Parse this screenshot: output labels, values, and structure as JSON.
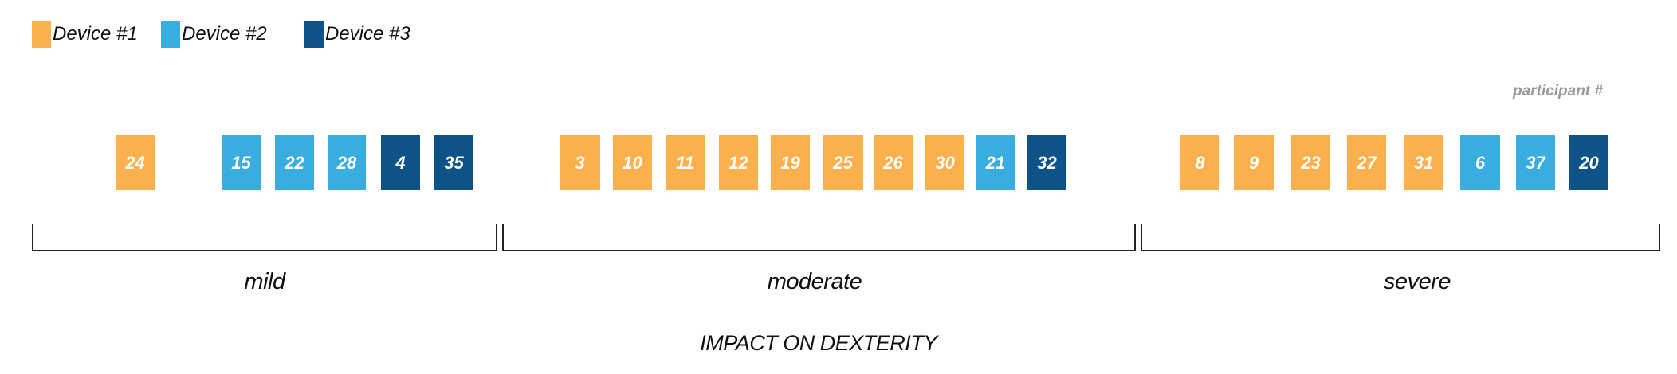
{
  "legend": [
    {
      "label": "Device #1",
      "color": "#F9B04D"
    },
    {
      "label": "Device #2",
      "color": "#39ACE0"
    },
    {
      "label": "Device #3",
      "color": "#0E5387"
    }
  ],
  "participant_caption": "participant #",
  "groups": [
    {
      "label": "mild",
      "participants": [
        {
          "id": "24",
          "device": 1
        },
        {
          "id": "15",
          "device": 2
        },
        {
          "id": "22",
          "device": 2
        },
        {
          "id": "28",
          "device": 2
        },
        {
          "id": "4",
          "device": 3
        },
        {
          "id": "35",
          "device": 3
        }
      ]
    },
    {
      "label": "moderate",
      "participants": [
        {
          "id": "3",
          "device": 1
        },
        {
          "id": "10",
          "device": 1
        },
        {
          "id": "11",
          "device": 1
        },
        {
          "id": "12",
          "device": 1
        },
        {
          "id": "19",
          "device": 1
        },
        {
          "id": "25",
          "device": 1
        },
        {
          "id": "26",
          "device": 1
        },
        {
          "id": "30",
          "device": 1
        },
        {
          "id": "21",
          "device": 2
        },
        {
          "id": "32",
          "device": 3
        }
      ]
    },
    {
      "label": "severe",
      "participants": [
        {
          "id": "8",
          "device": 1
        },
        {
          "id": "9",
          "device": 1
        },
        {
          "id": "23",
          "device": 1
        },
        {
          "id": "27",
          "device": 1
        },
        {
          "id": "31",
          "device": 1
        },
        {
          "id": "6",
          "device": 2
        },
        {
          "id": "37",
          "device": 2
        },
        {
          "id": "20",
          "device": 3
        }
      ]
    }
  ],
  "axis_title": "IMPACT ON DEXTERITY"
}
